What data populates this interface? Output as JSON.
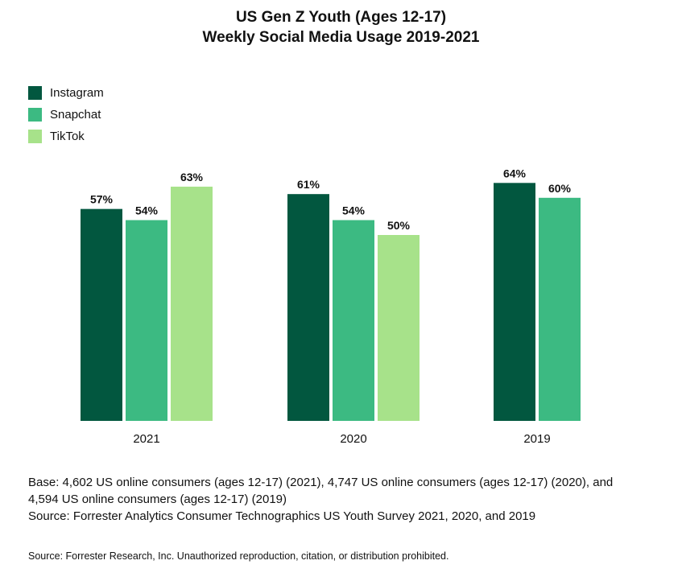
{
  "colors": {
    "instagram": "#02573f",
    "snapchat": "#3cba82",
    "tiktok": "#a7e28a",
    "text": "#111111"
  },
  "chart_data": {
    "type": "bar",
    "title": "US Gen Z Youth (Ages 12-17)",
    "subtitle": "Weekly Social Media Usage 2019-2021",
    "categories": [
      "2021",
      "2020",
      "2019"
    ],
    "series": [
      {
        "name": "Instagram",
        "values": [
          57,
          61,
          64
        ],
        "labels": [
          "57%",
          "61%",
          "64%"
        ]
      },
      {
        "name": "Snapchat",
        "values": [
          54,
          54,
          60
        ],
        "labels": [
          "54%",
          "54%",
          "60%"
        ]
      },
      {
        "name": "TikTok",
        "values": [
          63,
          50,
          null
        ],
        "labels": [
          "63%",
          "50%",
          null
        ]
      }
    ],
    "unit": "%",
    "ylim": [
      0,
      100
    ],
    "grid": false,
    "legend_position": "top-left",
    "xlabel": "",
    "ylabel": ""
  },
  "notes": {
    "base_line1": "Base: 4,602 US online consumers (ages 12-17) (2021), 4,747 US online consumers (ages 12-17) (2020), and",
    "base_line2": "4,594 US online consumers (ages 12-17) (2019)",
    "source": "Source: Forrester Analytics Consumer Technographics US Youth Survey 2021, 2020, and 2019"
  },
  "copyright": "Source: Forrester Research, Inc. Unauthorized reproduction, citation, or distribution prohibited."
}
